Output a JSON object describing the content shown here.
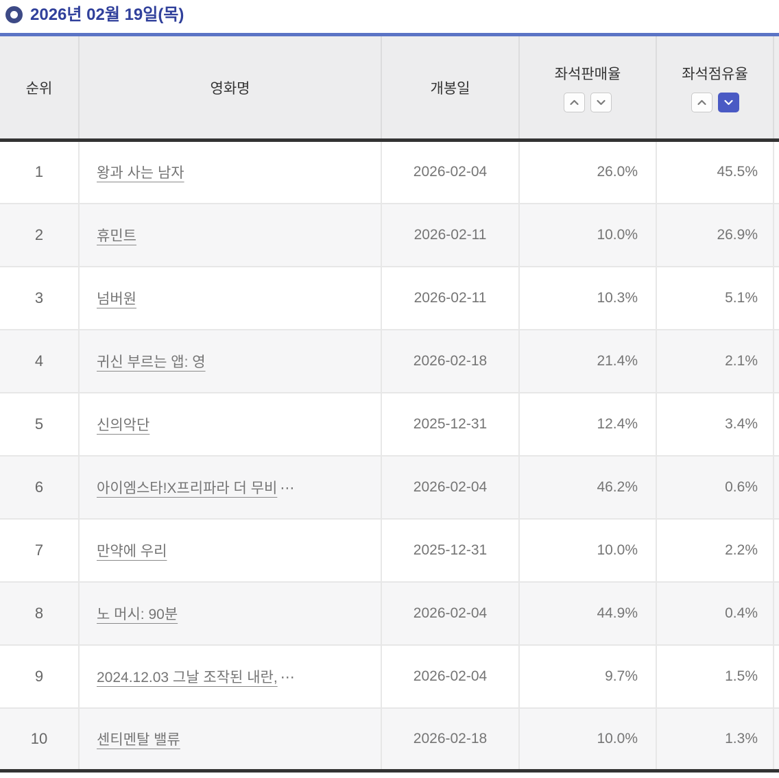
{
  "title": "2026년 02월 19일(목)",
  "table": {
    "columns": {
      "rank": "순위",
      "movie": "영화명",
      "release_date": "개봉일",
      "seat_sales_rate": "좌석판매율",
      "seat_occupancy_rate": "좌석점유율"
    },
    "sort": {
      "seat_sales_rate": {
        "asc_active": false,
        "desc_active": false
      },
      "seat_occupancy_rate": {
        "asc_active": false,
        "desc_active": true
      }
    },
    "rows": [
      {
        "rank": "1",
        "title": "왕과 사는 남자",
        "truncated": false,
        "release_date": "2026-02-04",
        "seat_sales_rate": "26.0%",
        "seat_occupancy_rate": "45.5%"
      },
      {
        "rank": "2",
        "title": "휴민트",
        "truncated": false,
        "release_date": "2026-02-11",
        "seat_sales_rate": "10.0%",
        "seat_occupancy_rate": "26.9%"
      },
      {
        "rank": "3",
        "title": "넘버원",
        "truncated": false,
        "release_date": "2026-02-11",
        "seat_sales_rate": "10.3%",
        "seat_occupancy_rate": "5.1%"
      },
      {
        "rank": "4",
        "title": "귀신 부르는 앱: 영",
        "truncated": false,
        "release_date": "2026-02-18",
        "seat_sales_rate": "21.4%",
        "seat_occupancy_rate": "2.1%"
      },
      {
        "rank": "5",
        "title": "신의악단",
        "truncated": false,
        "release_date": "2025-12-31",
        "seat_sales_rate": "12.4%",
        "seat_occupancy_rate": "3.4%"
      },
      {
        "rank": "6",
        "title": "아이엠스타!X프리파라 더 무비",
        "truncated": true,
        "release_date": "2026-02-04",
        "seat_sales_rate": "46.2%",
        "seat_occupancy_rate": "0.6%"
      },
      {
        "rank": "7",
        "title": "만약에 우리",
        "truncated": false,
        "release_date": "2025-12-31",
        "seat_sales_rate": "10.0%",
        "seat_occupancy_rate": "2.2%"
      },
      {
        "rank": "8",
        "title": "노 머시: 90분",
        "truncated": false,
        "release_date": "2026-02-04",
        "seat_sales_rate": "44.9%",
        "seat_occupancy_rate": "0.4%"
      },
      {
        "rank": "9",
        "title": "2024.12.03 그날 조작된 내란,",
        "truncated": true,
        "release_date": "2026-02-04",
        "seat_sales_rate": "9.7%",
        "seat_occupancy_rate": "1.5%"
      },
      {
        "rank": "10",
        "title": "센티멘탈 밸류",
        "truncated": false,
        "release_date": "2026-02-18",
        "seat_sales_rate": "10.0%",
        "seat_occupancy_rate": "1.3%"
      }
    ],
    "truncation_mark": "⋯"
  },
  "colors": {
    "accent_sort_active": "#4a5ac4",
    "title_text": "#30409b",
    "table_top_border": "#5b74c5",
    "table_dark_border": "#333333"
  }
}
